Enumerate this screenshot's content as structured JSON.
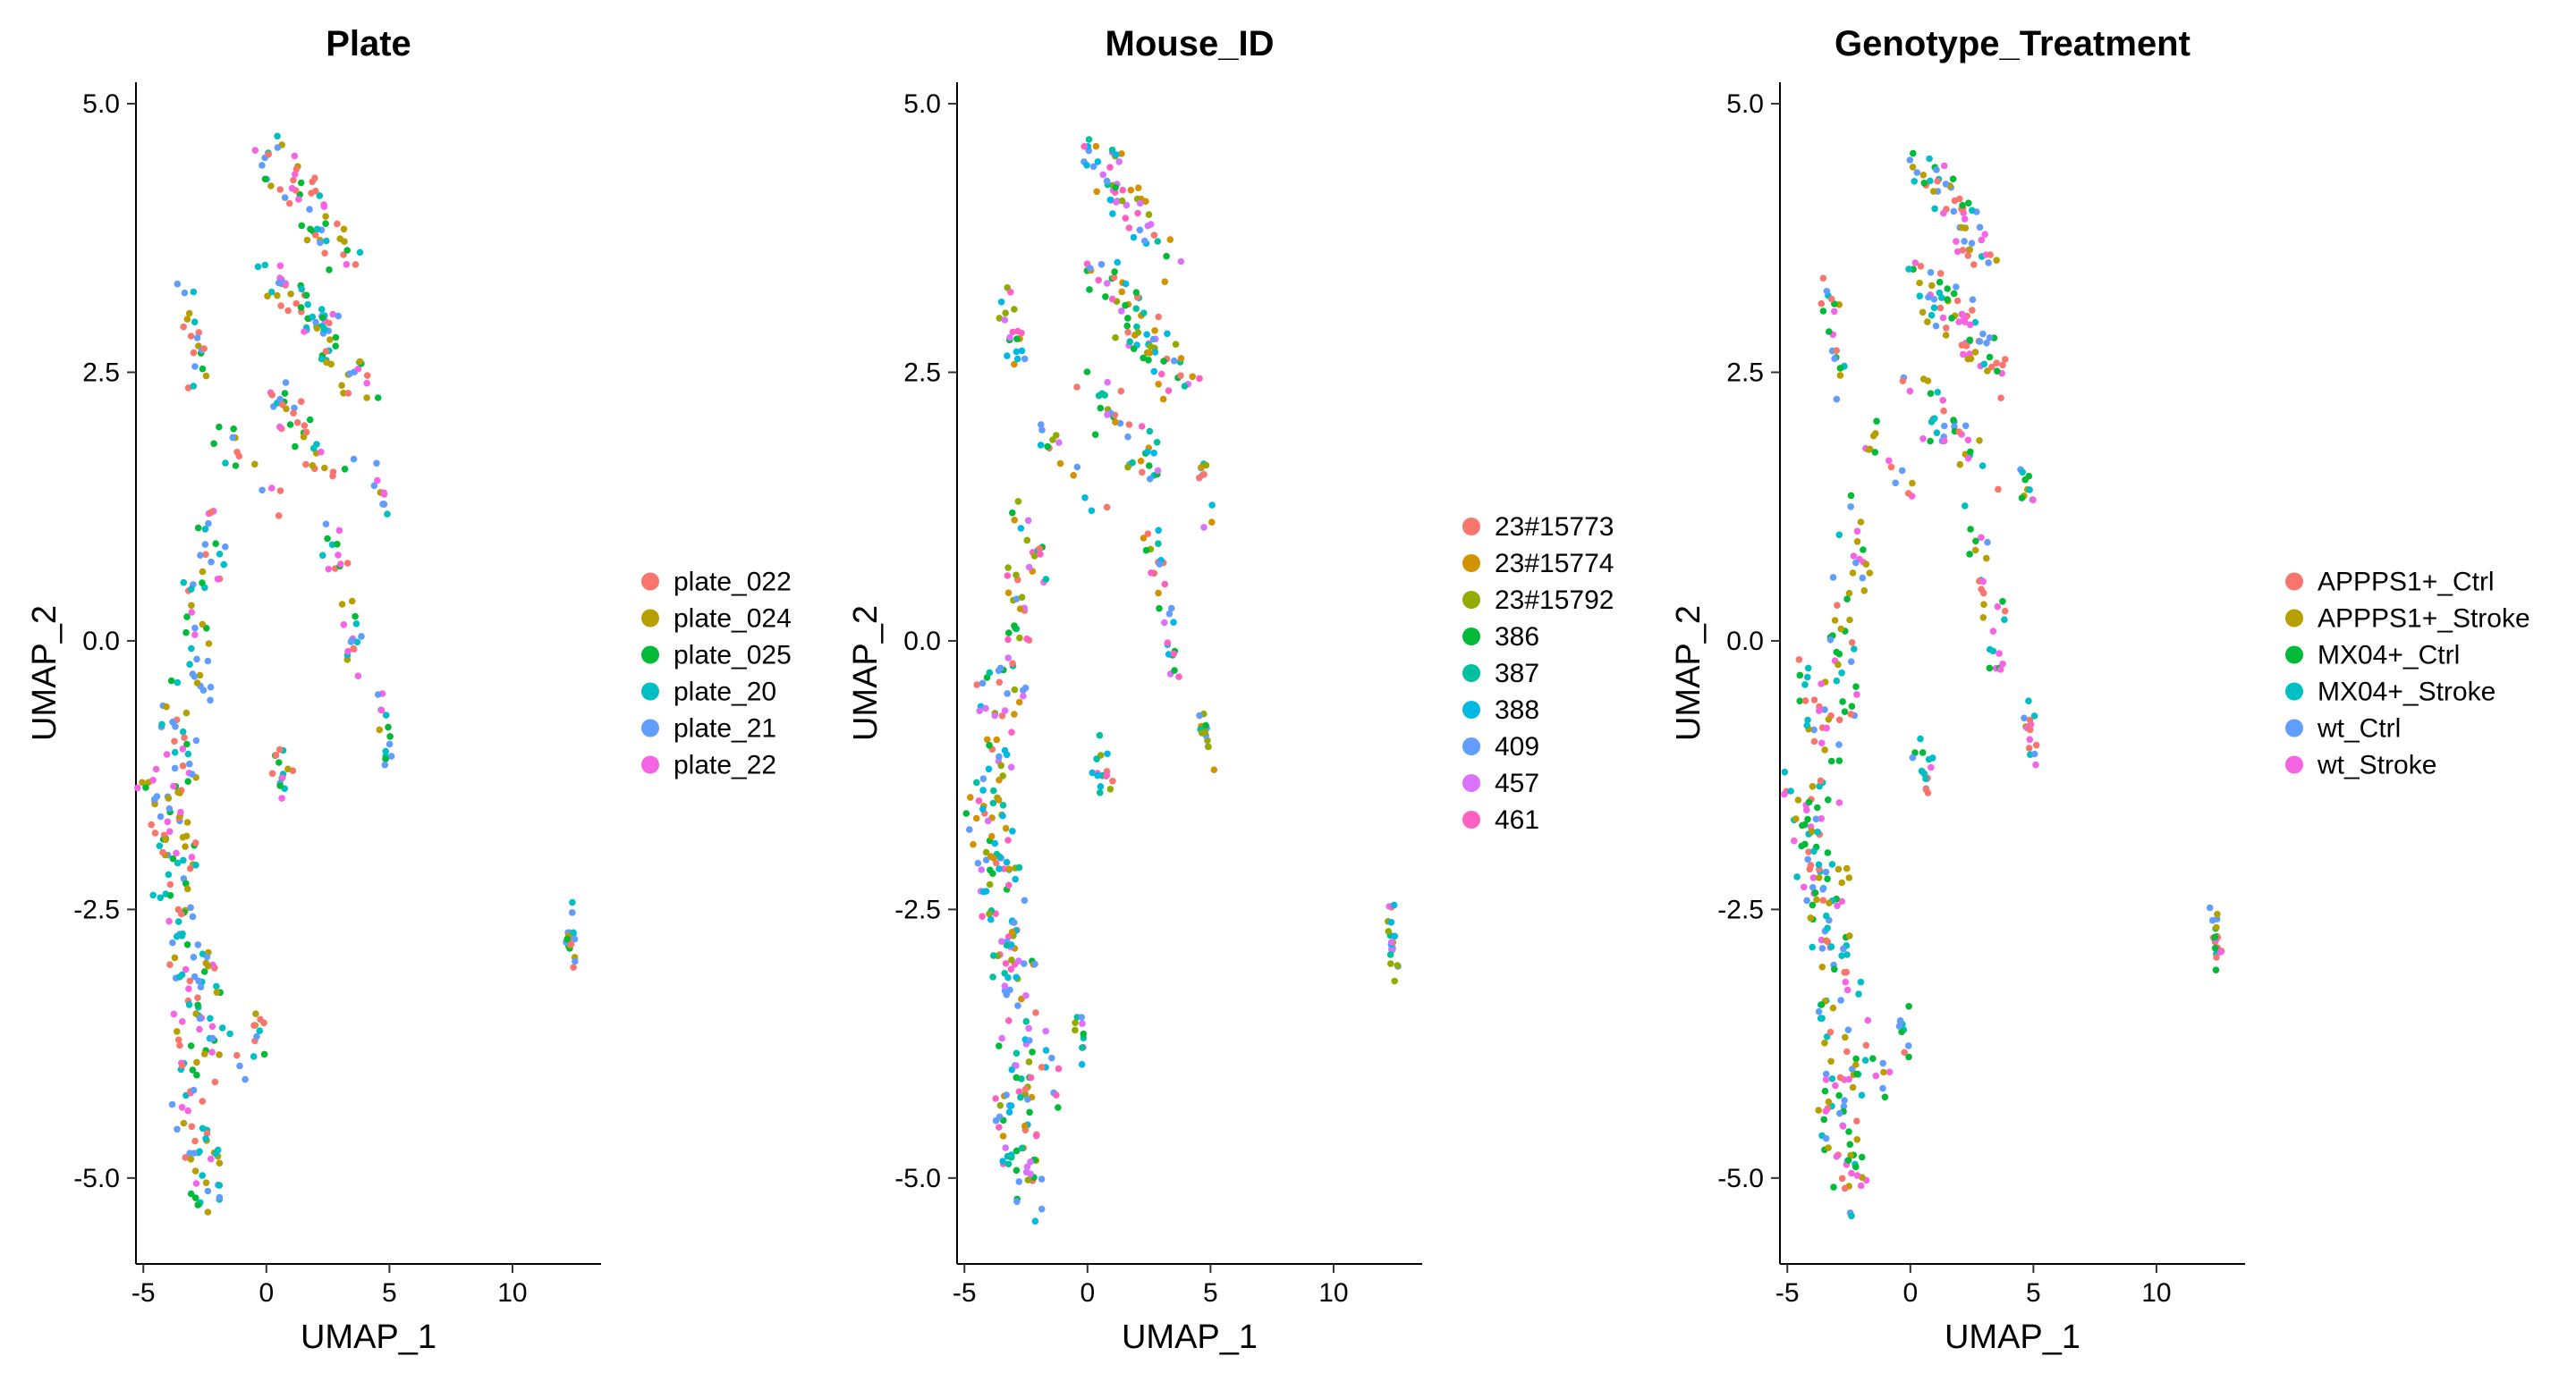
{
  "chart_data": [
    {
      "type": "scatter",
      "title": "Plate",
      "xlabel": "UMAP_1",
      "ylabel": "UMAP_2",
      "xlim": [
        -5.3,
        13.6
      ],
      "ylim": [
        -5.8,
        5.2
      ],
      "xticks": [
        -5,
        0,
        5,
        10
      ],
      "yticks": [
        -5.0,
        -2.5,
        0.0,
        2.5,
        5.0
      ],
      "yticklabels": [
        "-5.0",
        "-2.5",
        "0.0",
        "2.5",
        "5.0"
      ],
      "legend_placement": "right",
      "grid": false,
      "seed": 101,
      "series": [
        {
          "name": "plate_022",
          "color": "#F8766D"
        },
        {
          "name": "plate_024",
          "color": "#B79F00"
        },
        {
          "name": "plate_025",
          "color": "#00BA38"
        },
        {
          "name": "plate_20",
          "color": "#00BFC4"
        },
        {
          "name": "plate_21",
          "color": "#619CFF"
        },
        {
          "name": "plate_22",
          "color": "#F564E3"
        }
      ]
    },
    {
      "type": "scatter",
      "title": "Mouse_ID",
      "xlabel": "UMAP_1",
      "ylabel": "UMAP_2",
      "xlim": [
        -5.3,
        13.6
      ],
      "ylim": [
        -5.8,
        5.2
      ],
      "xticks": [
        -5,
        0,
        5,
        10
      ],
      "yticks": [
        -5.0,
        -2.5,
        0.0,
        2.5,
        5.0
      ],
      "yticklabels": [
        "-5.0",
        "-2.5",
        "0.0",
        "2.5",
        "5.0"
      ],
      "legend_placement": "right",
      "grid": false,
      "seed": 202,
      "series": [
        {
          "name": "23#15773",
          "color": "#F8766D"
        },
        {
          "name": "23#15774",
          "color": "#D39200"
        },
        {
          "name": "23#15792",
          "color": "#93AA00"
        },
        {
          "name": "386",
          "color": "#00BA38"
        },
        {
          "name": "387",
          "color": "#00C19F"
        },
        {
          "name": "388",
          "color": "#00B9E3"
        },
        {
          "name": "409",
          "color": "#619CFF"
        },
        {
          "name": "457",
          "color": "#DB72FB"
        },
        {
          "name": "461",
          "color": "#FF61C3"
        }
      ]
    },
    {
      "type": "scatter",
      "title": "Genotype_Treatment",
      "xlabel": "UMAP_1",
      "ylabel": "UMAP_2",
      "xlim": [
        -5.3,
        13.6
      ],
      "ylim": [
        -5.8,
        5.2
      ],
      "xticks": [
        -5,
        0,
        5,
        10
      ],
      "yticks": [
        -5.0,
        -2.5,
        0.0,
        2.5,
        5.0
      ],
      "yticklabels": [
        "-5.0",
        "-2.5",
        "0.0",
        "2.5",
        "5.0"
      ],
      "legend_placement": "right",
      "grid": false,
      "seed": 303,
      "series": [
        {
          "name": "APPPS1+_Ctrl",
          "color": "#F8766D"
        },
        {
          "name": "APPPS1+_Stroke",
          "color": "#B79F00"
        },
        {
          "name": "MX04+_Ctrl",
          "color": "#00BA38"
        },
        {
          "name": "MX04+_Stroke",
          "color": "#00BFC4"
        },
        {
          "name": "wt_Ctrl",
          "color": "#619CFF"
        },
        {
          "name": "wt_Stroke",
          "color": "#F564E3"
        }
      ]
    }
  ],
  "clusters": [
    {
      "x0": -2.0,
      "x1": 0.6,
      "y0": 2.0,
      "y1": 1.3,
      "n": 14,
      "w": 0.5
    },
    {
      "x0": -2.8,
      "x1": -1.8,
      "y0": 1.3,
      "y1": 0.6,
      "n": 16,
      "w": 0.5
    },
    {
      "x0": -3.0,
      "x1": -2.5,
      "y0": 0.6,
      "y1": -0.7,
      "n": 28,
      "w": 0.6
    },
    {
      "x0": -4.0,
      "x1": -3.2,
      "y0": -0.3,
      "y1": -1.4,
      "n": 30,
      "w": 0.8
    },
    {
      "x0": -4.5,
      "x1": -3.2,
      "y0": -1.3,
      "y1": -2.3,
      "n": 50,
      "w": 1.0
    },
    {
      "x0": -4.0,
      "x1": -2.6,
      "y0": -2.3,
      "y1": -3.2,
      "n": 40,
      "w": 1.0
    },
    {
      "x0": -3.2,
      "x1": -2.6,
      "y0": -3.2,
      "y1": -4.3,
      "n": 36,
      "w": 0.9
    },
    {
      "x0": -3.2,
      "x1": -2.2,
      "y0": -4.3,
      "y1": -5.3,
      "n": 40,
      "w": 0.9
    },
    {
      "x0": -2.2,
      "x1": -1.0,
      "y0": -3.5,
      "y1": -4.2,
      "n": 10,
      "w": 0.5
    },
    {
      "x0": -0.3,
      "x1": -0.3,
      "y0": -3.5,
      "y1": -3.95,
      "n": 10,
      "w": 0.3
    },
    {
      "x0": -3.3,
      "x1": -2.7,
      "y0": 3.25,
      "y1": 2.4,
      "n": 20,
      "w": 0.5
    },
    {
      "x0": 0.2,
      "x1": 3.3,
      "y0": 4.6,
      "y1": 3.5,
      "n": 55,
      "w": 0.9
    },
    {
      "x0": 0.3,
      "x1": 3.8,
      "y0": 3.5,
      "y1": 2.4,
      "n": 70,
      "w": 1.1
    },
    {
      "x0": 0.0,
      "x1": 3.0,
      "y0": 2.4,
      "y1": 1.5,
      "n": 35,
      "w": 0.9
    },
    {
      "x0": 2.4,
      "x1": 3.6,
      "y0": 1.1,
      "y1": 0.1,
      "n": 20,
      "w": 0.5
    },
    {
      "x0": 3.3,
      "x1": 3.6,
      "y0": 0.0,
      "y1": -0.4,
      "n": 8,
      "w": 0.3
    },
    {
      "x0": 4.5,
      "x1": 4.9,
      "y0": 1.7,
      "y1": 1.2,
      "n": 10,
      "w": 0.25
    },
    {
      "x0": 4.7,
      "x1": 5.0,
      "y0": -0.6,
      "y1": -1.1,
      "n": 14,
      "w": 0.25
    },
    {
      "x0": 0.3,
      "x1": 0.9,
      "y0": -1.0,
      "y1": -1.35,
      "n": 16,
      "w": 0.3
    },
    {
      "x0": 12.3,
      "x1": 12.5,
      "y0": -2.6,
      "y1": -3.0,
      "n": 20,
      "w": 0.2
    }
  ]
}
